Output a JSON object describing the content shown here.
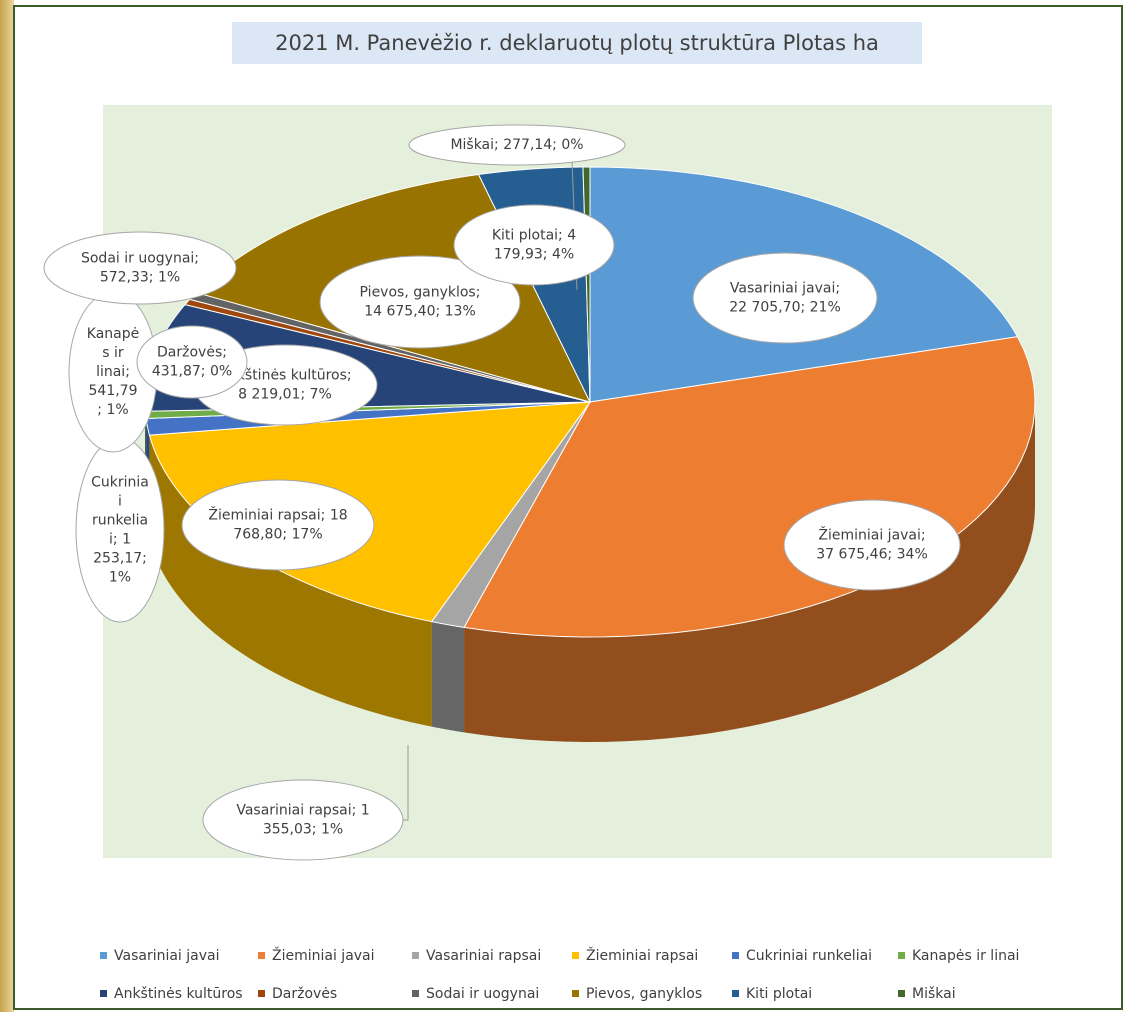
{
  "chart_data": {
    "type": "pie",
    "title": "2021 M. Panevėžio r. deklaruotų plotų struktūra Plotas ha",
    "categories": [
      "Vasariniai javai",
      "Žieminiai javai",
      "Vasariniai rapsai",
      "Žieminiai rapsai",
      "Cukriniai runkeliai",
      "Kanapės ir linai",
      "Ankštinės kultūros",
      "Daržovės",
      "Sodai ir uogynai",
      "Pievos, ganyklos",
      "Kiti plotai",
      "Miškai"
    ],
    "values": [
      22705.7,
      37675.46,
      1355.03,
      18768.8,
      1253.17,
      541.79,
      8219.01,
      431.87,
      572.33,
      14675.4,
      4179.93,
      277.14
    ],
    "value_labels": [
      "Vasariniai javai; 22 705,70; 21%",
      "Žieminiai javai; 37 675,46; 34%",
      "Vasariniai rapsai; 1 355,03; 1%",
      "Žieminiai rapsai; 18 768,80; 17%",
      "Cukriniai runkeliai; 1 253,17; 1%",
      "Kanapės ir linai; 541,79; 1%",
      "Ankštinės kultūros; 8 219,01; 7%",
      "Daržovės; 431,87; 0%",
      "Sodai ir uogynai; 572,33; 1%",
      "Pievos, ganyklos; 14 675,40; 13%",
      "Kiti plotai; 4 179,93; 4%",
      "Miškai; 277,14; 0%"
    ],
    "colors": [
      "#5b9bd5",
      "#ed7d31",
      "#a5a5a5",
      "#ffc000",
      "#4472c4",
      "#70ad47",
      "#264478",
      "#9e480e",
      "#636363",
      "#997300",
      "#255e91",
      "#43682b"
    ],
    "legend": "bottom"
  }
}
